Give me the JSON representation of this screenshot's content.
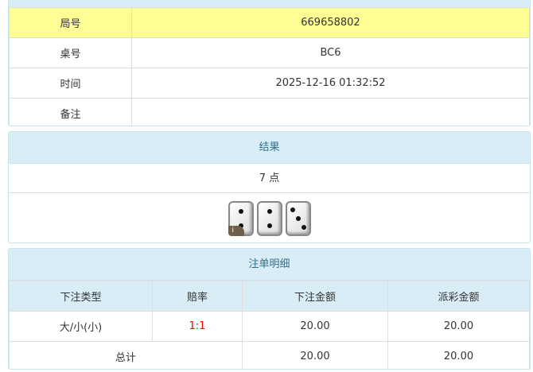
{
  "info": {
    "rows": [
      {
        "label": "局号",
        "value": "669658802"
      },
      {
        "label": "桌号",
        "value": "BC6"
      },
      {
        "label": "时间",
        "value": "2025-12-16 01:32:52"
      },
      {
        "label": "备注",
        "value": ""
      }
    ]
  },
  "result": {
    "title": "结果",
    "points": "7 点",
    "dice": [
      2,
      2,
      3
    ],
    "info_badge": "i"
  },
  "bets": {
    "title": "注单明细",
    "headers": [
      "下注类型",
      "赔率",
      "下注金额",
      "派彩金额"
    ],
    "rows": [
      {
        "type": "大/小(小)",
        "odds": "1:1",
        "amount": "20.00",
        "payout": "20.00"
      }
    ],
    "total": {
      "label": "总计",
      "amount": "20.00",
      "payout": "20.00"
    }
  },
  "colors": {
    "highlight": "#fffe94",
    "header": "#d9edf7",
    "odds": "#ee0000"
  }
}
